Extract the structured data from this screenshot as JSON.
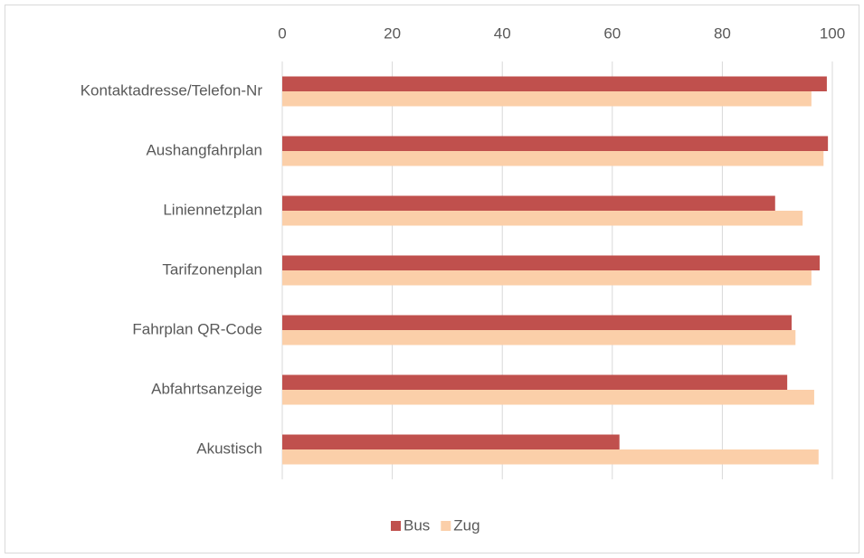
{
  "chart_data": {
    "type": "bar",
    "orientation": "horizontal",
    "categories": [
      "Kontaktadresse/Telefon-Nr",
      "Aushangfahrplan",
      "Liniennetzplan",
      "Tarifzonenplan",
      "Fahrplan QR-Code",
      "Abfahrtsanzeige",
      "Akustisch"
    ],
    "series": [
      {
        "name": "Bus",
        "color": "#c0504d",
        "values": [
          99.0,
          99.2,
          89.6,
          97.7,
          92.6,
          91.8,
          61.3
        ]
      },
      {
        "name": "Zug",
        "color": "#fbcfa9",
        "values": [
          96.2,
          98.4,
          94.6,
          96.2,
          93.3,
          96.7,
          97.5
        ]
      }
    ],
    "xlim": [
      0,
      100
    ],
    "xticks": [
      0,
      20,
      40,
      60,
      80,
      100
    ],
    "grid": true,
    "legend": "bottom"
  }
}
